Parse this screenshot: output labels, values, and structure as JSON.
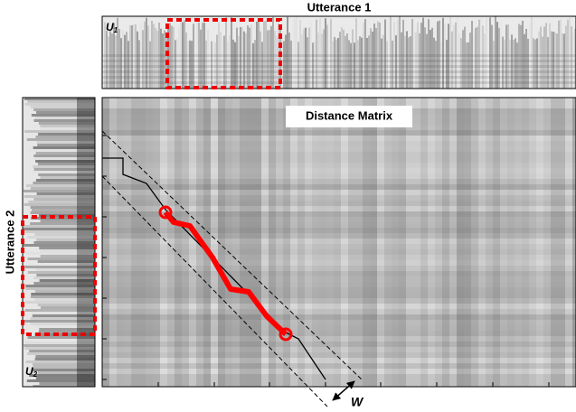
{
  "figure": {
    "top_title": "Utterance 1",
    "top_label": {
      "letter": "U",
      "subscript": "1"
    },
    "side_title": "Utterance 2",
    "side_label": {
      "letter": "U",
      "subscript": "2"
    },
    "matrix_title": "Distance Matrix",
    "window_label": "W"
  }
}
